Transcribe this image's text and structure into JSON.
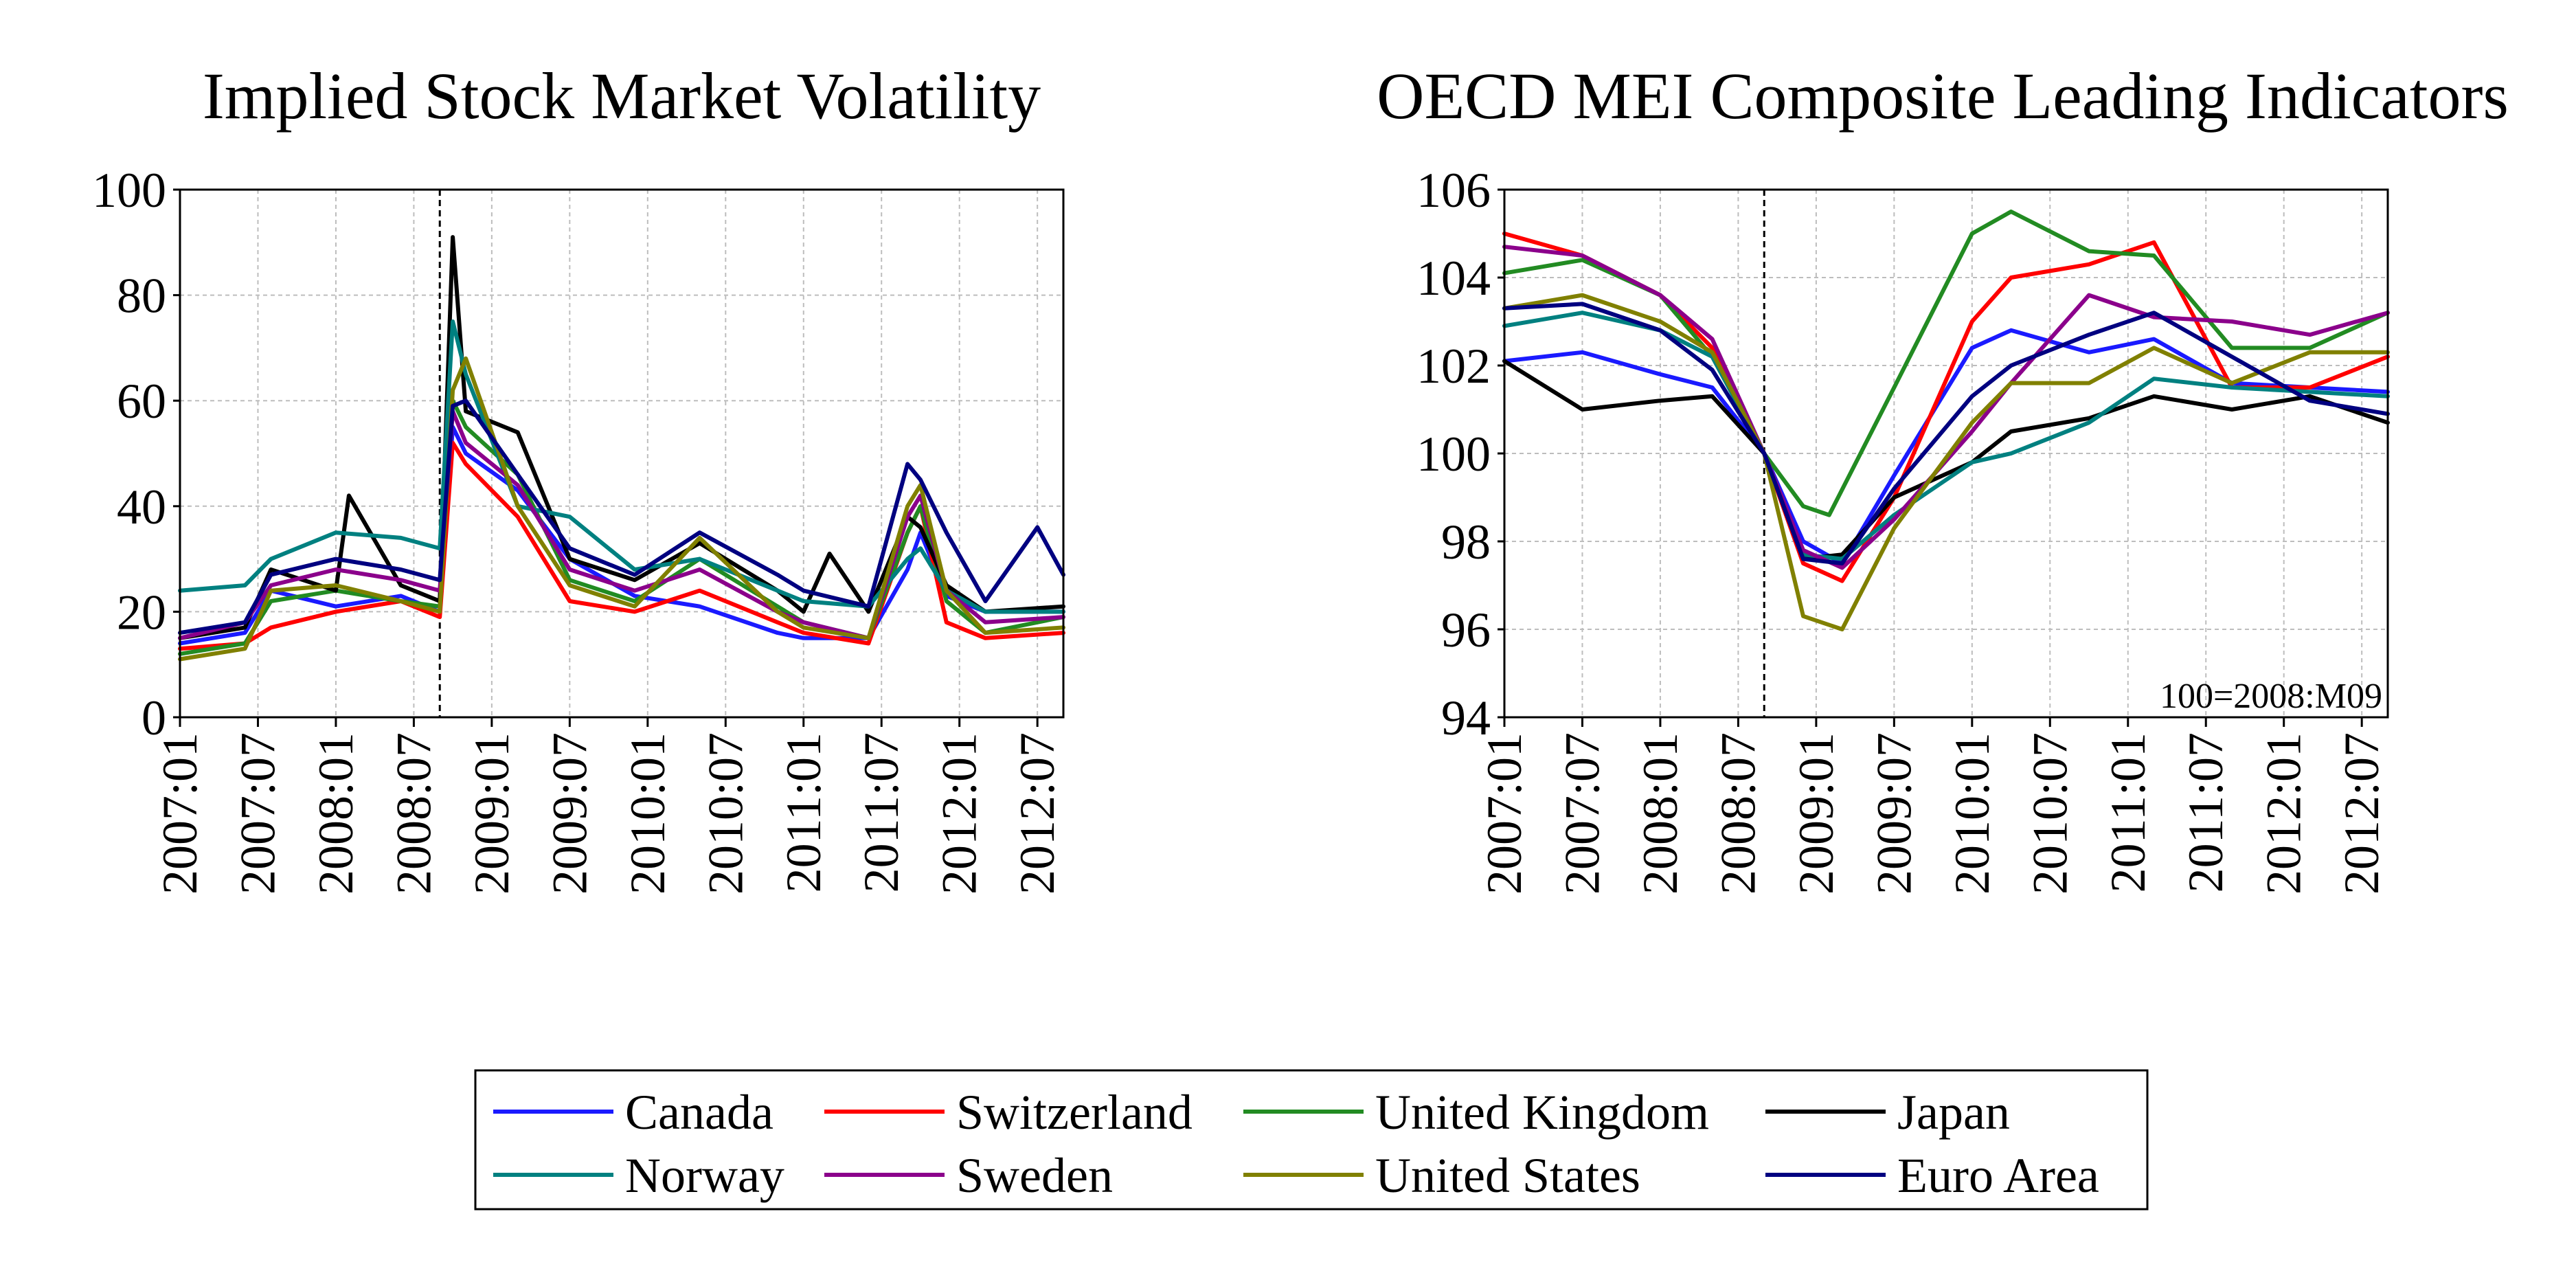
{
  "chart_data": [
    {
      "type": "line",
      "title": "Implied Stock Market Volatility",
      "xlabel": "",
      "ylabel": "",
      "ylim": [
        0,
        100
      ],
      "yticks": [
        0,
        20,
        40,
        60,
        80,
        100
      ],
      "x_start": "2007:01",
      "x_end": "2012:09",
      "xticks": [
        "2007:01",
        "2007:07",
        "2008:01",
        "2008:07",
        "2009:01",
        "2009:07",
        "2010:01",
        "2010:07",
        "2011:01",
        "2011:07",
        "2012:01",
        "2012:07"
      ],
      "grid": true,
      "reference_line": "2008:09",
      "series": [
        {
          "name": "Canada",
          "color": "#1a1aff",
          "x": [
            "2007:01",
            "2007:06",
            "2007:08",
            "2008:01",
            "2008:06",
            "2008:09",
            "2008:10",
            "2008:11",
            "2009:03",
            "2009:07",
            "2009:12",
            "2010:05",
            "2010:11",
            "2011:01",
            "2011:06",
            "2011:09",
            "2011:10",
            "2011:12",
            "2012:03",
            "2012:09"
          ],
          "values": [
            14,
            16,
            24,
            21,
            23,
            20,
            55,
            50,
            43,
            30,
            23,
            21,
            16,
            15,
            15,
            28,
            35,
            23,
            20,
            20
          ]
        },
        {
          "name": "Switzerland",
          "color": "#ff0000",
          "x": [
            "2007:01",
            "2007:06",
            "2007:08",
            "2008:01",
            "2008:06",
            "2008:09",
            "2008:10",
            "2008:11",
            "2009:03",
            "2009:07",
            "2009:12",
            "2010:05",
            "2010:11",
            "2011:01",
            "2011:06",
            "2011:09",
            "2011:10",
            "2011:12",
            "2012:03",
            "2012:09"
          ],
          "values": [
            13,
            14,
            17,
            20,
            22,
            19,
            52,
            48,
            38,
            22,
            20,
            24,
            18,
            16,
            14,
            35,
            40,
            18,
            15,
            16
          ]
        },
        {
          "name": "United Kingdom",
          "color": "#228b22",
          "x": [
            "2007:01",
            "2007:06",
            "2007:08",
            "2008:01",
            "2008:06",
            "2008:09",
            "2008:10",
            "2008:11",
            "2009:03",
            "2009:07",
            "2009:12",
            "2010:05",
            "2010:11",
            "2011:01",
            "2011:06",
            "2011:09",
            "2011:10",
            "2011:12",
            "2012:03",
            "2012:09"
          ],
          "values": [
            12,
            14,
            22,
            24,
            22,
            21,
            60,
            55,
            46,
            26,
            22,
            30,
            21,
            18,
            15,
            35,
            40,
            22,
            16,
            19
          ]
        },
        {
          "name": "Japan",
          "color": "#000000",
          "x": [
            "2007:01",
            "2007:06",
            "2007:08",
            "2008:01",
            "2008:02",
            "2008:06",
            "2008:09",
            "2008:10",
            "2008:11",
            "2009:03",
            "2009:07",
            "2009:12",
            "2010:05",
            "2010:11",
            "2011:01",
            "2011:03",
            "2011:06",
            "2011:09",
            "2011:10",
            "2011:12",
            "2012:03",
            "2012:09"
          ],
          "values": [
            15,
            17,
            28,
            24,
            42,
            25,
            22,
            91,
            58,
            54,
            30,
            26,
            33,
            24,
            20,
            31,
            20,
            38,
            36,
            25,
            20,
            21
          ]
        },
        {
          "name": "Norway",
          "color": "#008080",
          "x": [
            "2007:01",
            "2007:06",
            "2007:08",
            "2008:01",
            "2008:06",
            "2008:09",
            "2008:10",
            "2008:11",
            "2009:03",
            "2009:07",
            "2009:12",
            "2010:05",
            "2010:11",
            "2011:01",
            "2011:06",
            "2011:09",
            "2011:10",
            "2011:12",
            "2012:03",
            "2012:09"
          ],
          "values": [
            24,
            25,
            30,
            35,
            34,
            32,
            75,
            65,
            40,
            38,
            28,
            30,
            24,
            22,
            21,
            30,
            32,
            24,
            20,
            20
          ]
        },
        {
          "name": "Sweden",
          "color": "#8b008b",
          "x": [
            "2007:01",
            "2007:06",
            "2007:08",
            "2008:01",
            "2008:06",
            "2008:09",
            "2008:10",
            "2008:11",
            "2009:03",
            "2009:07",
            "2009:12",
            "2010:05",
            "2010:11",
            "2011:01",
            "2011:06",
            "2011:09",
            "2011:10",
            "2011:12",
            "2012:03",
            "2012:09"
          ],
          "values": [
            15,
            18,
            25,
            28,
            26,
            24,
            58,
            52,
            44,
            28,
            24,
            28,
            20,
            18,
            15,
            38,
            42,
            24,
            18,
            19
          ]
        },
        {
          "name": "United States",
          "color": "#808000",
          "x": [
            "2007:01",
            "2007:06",
            "2007:08",
            "2008:01",
            "2008:06",
            "2008:09",
            "2008:10",
            "2008:11",
            "2009:03",
            "2009:07",
            "2009:12",
            "2010:05",
            "2010:11",
            "2011:01",
            "2011:06",
            "2011:09",
            "2011:10",
            "2011:12",
            "2012:03",
            "2012:09"
          ],
          "values": [
            11,
            13,
            24,
            25,
            22,
            20,
            62,
            68,
            40,
            25,
            21,
            34,
            20,
            17,
            15,
            40,
            44,
            24,
            16,
            17
          ]
        },
        {
          "name": "Euro Area",
          "color": "#000080",
          "x": [
            "2007:01",
            "2007:06",
            "2007:08",
            "2008:01",
            "2008:06",
            "2008:09",
            "2008:10",
            "2008:11",
            "2009:03",
            "2009:07",
            "2009:12",
            "2010:05",
            "2010:11",
            "2011:01",
            "2011:06",
            "2011:09",
            "2011:10",
            "2011:12",
            "2012:03",
            "2012:07",
            "2012:09"
          ],
          "values": [
            16,
            18,
            27,
            30,
            28,
            26,
            59,
            60,
            46,
            32,
            27,
            35,
            27,
            24,
            21,
            48,
            45,
            35,
            22,
            36,
            27
          ]
        }
      ]
    },
    {
      "type": "line",
      "title": "OECD MEI Composite Leading Indicators",
      "xlabel": "",
      "ylabel": "",
      "ylim": [
        94,
        106
      ],
      "yticks": [
        94,
        96,
        98,
        100,
        102,
        104,
        106
      ],
      "x_start": "2007:01",
      "x_end": "2012:09",
      "xticks": [
        "2007:01",
        "2007:07",
        "2008:01",
        "2008:07",
        "2009:01",
        "2009:07",
        "2010:01",
        "2010:07",
        "2011:01",
        "2011:07",
        "2012:01",
        "2012:07"
      ],
      "grid": true,
      "reference_line": "2008:09",
      "annotation": "100=2008:M09",
      "series": [
        {
          "name": "Canada",
          "color": "#1a1aff",
          "x": [
            "2007:01",
            "2007:07",
            "2008:01",
            "2008:05",
            "2008:09",
            "2008:12",
            "2009:03",
            "2009:07",
            "2010:01",
            "2010:04",
            "2010:10",
            "2011:03",
            "2011:09",
            "2012:03",
            "2012:09"
          ],
          "values": [
            102.1,
            102.3,
            101.8,
            101.5,
            100,
            98.0,
            97.5,
            99.5,
            102.4,
            102.8,
            102.3,
            102.6,
            101.6,
            101.5,
            101.4
          ]
        },
        {
          "name": "Switzerland",
          "color": "#ff0000",
          "x": [
            "2007:01",
            "2007:07",
            "2008:01",
            "2008:05",
            "2008:09",
            "2008:12",
            "2009:03",
            "2009:07",
            "2010:01",
            "2010:04",
            "2010:10",
            "2011:03",
            "2011:09",
            "2012:03",
            "2012:09"
          ],
          "values": [
            105.0,
            104.5,
            103.6,
            102.4,
            100,
            97.5,
            97.1,
            99.0,
            103.0,
            104.0,
            104.3,
            104.8,
            101.5,
            101.5,
            102.2
          ]
        },
        {
          "name": "United Kingdom",
          "color": "#228b22",
          "x": [
            "2007:01",
            "2007:07",
            "2008:01",
            "2008:05",
            "2008:09",
            "2008:12",
            "2009:02",
            "2009:07",
            "2010:01",
            "2010:04",
            "2010:10",
            "2011:03",
            "2011:09",
            "2012:03",
            "2012:09"
          ],
          "values": [
            104.1,
            104.4,
            103.6,
            102.2,
            100,
            98.8,
            98.6,
            101.5,
            105.0,
            105.5,
            104.6,
            104.5,
            102.4,
            102.4,
            103.2
          ]
        },
        {
          "name": "Japan",
          "color": "#000000",
          "x": [
            "2007:01",
            "2007:07",
            "2008:01",
            "2008:05",
            "2008:09",
            "2008:12",
            "2009:03",
            "2009:07",
            "2010:01",
            "2010:04",
            "2010:10",
            "2011:03",
            "2011:09",
            "2012:03",
            "2012:09"
          ],
          "values": [
            102.1,
            101.0,
            101.2,
            101.3,
            100,
            97.6,
            97.7,
            99.0,
            99.8,
            100.5,
            100.8,
            101.3,
            101.0,
            101.3,
            100.7
          ]
        },
        {
          "name": "Norway",
          "color": "#008080",
          "x": [
            "2007:01",
            "2007:07",
            "2008:01",
            "2008:05",
            "2008:09",
            "2008:12",
            "2009:03",
            "2009:07",
            "2010:01",
            "2010:04",
            "2010:10",
            "2011:03",
            "2011:09",
            "2012:03",
            "2012:09"
          ],
          "values": [
            102.9,
            103.2,
            102.8,
            102.2,
            100,
            97.7,
            97.6,
            98.6,
            99.8,
            100.0,
            100.7,
            101.7,
            101.5,
            101.4,
            101.3
          ]
        },
        {
          "name": "Sweden",
          "color": "#8b008b",
          "x": [
            "2007:01",
            "2007:07",
            "2008:01",
            "2008:05",
            "2008:09",
            "2008:12",
            "2009:03",
            "2009:07",
            "2010:01",
            "2010:04",
            "2010:10",
            "2011:03",
            "2011:09",
            "2012:03",
            "2012:09"
          ],
          "values": [
            104.7,
            104.5,
            103.6,
            102.6,
            100,
            97.8,
            97.4,
            98.5,
            100.5,
            101.6,
            103.6,
            103.1,
            103.0,
            102.7,
            103.2
          ]
        },
        {
          "name": "United States",
          "color": "#808000",
          "x": [
            "2007:01",
            "2007:07",
            "2008:01",
            "2008:05",
            "2008:09",
            "2008:12",
            "2009:03",
            "2009:07",
            "2010:01",
            "2010:04",
            "2010:10",
            "2011:03",
            "2011:09",
            "2012:03",
            "2012:09"
          ],
          "values": [
            103.3,
            103.6,
            103.0,
            102.3,
            100,
            96.3,
            96.0,
            98.3,
            100.7,
            101.6,
            101.6,
            102.4,
            101.6,
            102.3,
            102.3
          ]
        },
        {
          "name": "Euro Area",
          "color": "#000080",
          "x": [
            "2007:01",
            "2007:07",
            "2008:01",
            "2008:05",
            "2008:09",
            "2008:12",
            "2009:03",
            "2009:07",
            "2010:01",
            "2010:04",
            "2010:10",
            "2011:03",
            "2011:09",
            "2012:03",
            "2012:09"
          ],
          "values": [
            103.3,
            103.4,
            102.8,
            101.9,
            100,
            97.6,
            97.5,
            99.2,
            101.3,
            102.0,
            102.7,
            103.2,
            102.2,
            101.2,
            100.9
          ]
        }
      ]
    }
  ],
  "legend": {
    "items": [
      {
        "name": "Canada",
        "color": "#1a1aff"
      },
      {
        "name": "Switzerland",
        "color": "#ff0000"
      },
      {
        "name": "United Kingdom",
        "color": "#228b22"
      },
      {
        "name": "Japan",
        "color": "#000000"
      },
      {
        "name": "Norway",
        "color": "#008080"
      },
      {
        "name": "Sweden",
        "color": "#8b008b"
      },
      {
        "name": "United States",
        "color": "#808000"
      },
      {
        "name": "Euro Area",
        "color": "#000080"
      }
    ]
  }
}
